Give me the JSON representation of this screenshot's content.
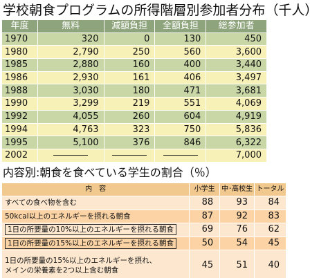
{
  "title": "学校朝食プログラムの所得階層別参加者分布（千人）",
  "table1": {
    "headers": [
      "年度",
      "無料",
      "減額負担",
      "全額負担",
      "総参加者"
    ],
    "rows": [
      [
        "1970",
        "320",
        "0",
        "130",
        "450"
      ],
      [
        "1980",
        "2,790",
        "250",
        "560",
        "3,600"
      ],
      [
        "1985",
        "2,880",
        "160",
        "400",
        "3,440"
      ],
      [
        "1986",
        "2,930",
        "161",
        "406",
        "3,497"
      ],
      [
        "1988",
        "3,030",
        "180",
        "471",
        "3,681"
      ],
      [
        "1990",
        "3,299",
        "219",
        "551",
        "4,069"
      ],
      [
        "1992",
        "4,055",
        "260",
        "604",
        "4,919"
      ],
      [
        "1994",
        "4,763",
        "323",
        "750",
        "5,836"
      ],
      [
        "1995",
        "5,100",
        "376",
        "846",
        "6,322"
      ],
      [
        "2002",
        "",
        "",
        "",
        "7,000"
      ]
    ]
  },
  "subtitle": "内容別:朝食を食べている学生の割合（％）",
  "table2": {
    "headers": [
      "内　容",
      "小学生",
      "中･高校生",
      "トータル"
    ],
    "rows": [
      {
        "label": "すべての食べ物を含む",
        "values": [
          "88",
          "93",
          "84"
        ]
      },
      {
        "label": "50kcal以上のエネルギーを摂れる朝食",
        "values": [
          "87",
          "92",
          "83"
        ]
      },
      {
        "label": "1日の所要量の10%以上のエネルギーを摂れる朝食",
        "values": [
          "69",
          "76",
          "62"
        ]
      },
      {
        "label": "1日の所要量の15%以上のエネルギーを摂れる朝食",
        "values": [
          "50",
          "54",
          "45"
        ]
      },
      {
        "label_line1": "1日の所要量の15%以上のエネルギーを摂れ、",
        "label_line2": "メインの栄養素を2つ以上含む朝食",
        "values": [
          "45",
          "51",
          "40"
        ]
      }
    ]
  }
}
